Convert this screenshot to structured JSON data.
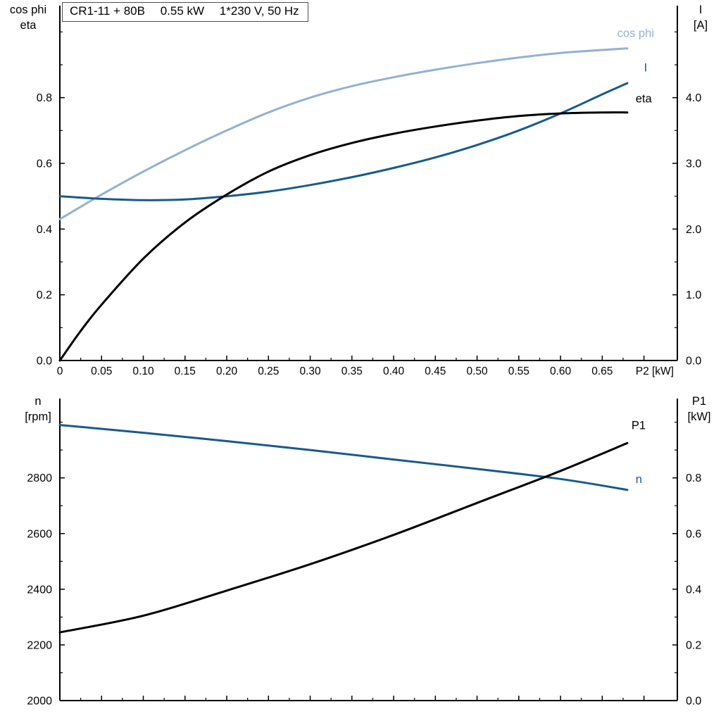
{
  "header": {
    "model": "CR1-11 + 80B",
    "power": "0.55 kW",
    "supply": "1*230 V, 50 Hz"
  },
  "colors": {
    "axis": "#000000",
    "background": "#ffffff",
    "curve_light_blue": "#92b2d0",
    "curve_dark_blue": "#175a8c",
    "curve_black": "#000000"
  },
  "chart_data": [
    {
      "type": "line",
      "title": "CR1-11 + 80B  0.55 kW  1*230 V, 50 Hz",
      "xlabel": "P2 [kW]",
      "xlim": [
        0,
        0.74
      ],
      "x_tick_values": [
        0,
        0.05,
        0.1,
        0.15,
        0.2,
        0.25,
        0.3,
        0.35,
        0.4,
        0.45,
        0.5,
        0.55,
        0.6,
        0.65,
        0.7
      ],
      "x_tick_labels": [
        "0",
        "0.05",
        "0.10",
        "0.15",
        "0.20",
        "0.25",
        "0.30",
        "0.35",
        "0.40",
        "0.45",
        "0.50",
        "0.55",
        "0.60",
        "0.65",
        ""
      ],
      "x_end_label": "P2 [kW]",
      "x_end_label_at": 0.69,
      "y_left": {
        "name_lines": [
          "cos phi",
          "eta"
        ],
        "lim": [
          0,
          1.08
        ],
        "tick_values": [
          0.0,
          0.2,
          0.4,
          0.6,
          0.8
        ],
        "tick_labels": [
          "0.0",
          "0.2",
          "0.4",
          "0.6",
          "0.8"
        ]
      },
      "y_right": {
        "name_lines": [
          "I",
          "[A]"
        ],
        "lim": [
          0,
          5.4
        ],
        "tick_values": [
          0.0,
          1.0,
          2.0,
          3.0,
          4.0
        ],
        "tick_labels": [
          "0.0",
          "1.0",
          "2.0",
          "3.0",
          "4.0"
        ]
      },
      "grid": false,
      "legend_position": "labels-at-curve-ends",
      "series": [
        {
          "id": "cos-phi",
          "label": "cos phi",
          "axis": "left",
          "color": "#92b2d0",
          "label_at": [
            0.668,
            0.985
          ],
          "x": [
            0,
            0.05,
            0.1,
            0.15,
            0.2,
            0.25,
            0.3,
            0.35,
            0.4,
            0.45,
            0.5,
            0.55,
            0.6,
            0.65,
            0.68
          ],
          "y": [
            0.43,
            0.505,
            0.575,
            0.64,
            0.7,
            0.755,
            0.8,
            0.835,
            0.862,
            0.885,
            0.905,
            0.922,
            0.936,
            0.945,
            0.95
          ]
        },
        {
          "id": "current",
          "label": "I",
          "axis": "right",
          "color": "#175a8c",
          "label_at": [
            0.7,
            4.4
          ],
          "x": [
            0,
            0.05,
            0.1,
            0.15,
            0.2,
            0.25,
            0.3,
            0.35,
            0.4,
            0.45,
            0.5,
            0.55,
            0.6,
            0.65,
            0.68
          ],
          "y": [
            2.5,
            2.46,
            2.44,
            2.45,
            2.5,
            2.57,
            2.67,
            2.79,
            2.93,
            3.09,
            3.28,
            3.5,
            3.76,
            4.05,
            4.22
          ]
        },
        {
          "id": "eta",
          "label": "eta",
          "axis": "left",
          "color": "#000000",
          "label_at": [
            0.69,
            0.785
          ],
          "x": [
            0,
            0.025,
            0.05,
            0.1,
            0.15,
            0.2,
            0.25,
            0.3,
            0.35,
            0.4,
            0.45,
            0.5,
            0.55,
            0.6,
            0.65,
            0.68
          ],
          "y": [
            0.0,
            0.09,
            0.17,
            0.31,
            0.42,
            0.505,
            0.575,
            0.625,
            0.662,
            0.69,
            0.712,
            0.73,
            0.744,
            0.752,
            0.755,
            0.755
          ]
        }
      ]
    },
    {
      "type": "line",
      "title": "",
      "xlabel": "",
      "xlim": [
        0,
        0.74
      ],
      "x_tick_values": [
        0,
        0.05,
        0.1,
        0.15,
        0.2,
        0.25,
        0.3,
        0.35,
        0.4,
        0.45,
        0.5,
        0.55,
        0.6,
        0.65,
        0.7
      ],
      "x_tick_labels": [
        "",
        "",
        "",
        "",
        "",
        "",
        "",
        "",
        "",
        "",
        "",
        "",
        "",
        "",
        ""
      ],
      "x_end_label": "",
      "x_end_label_at": 0.69,
      "y_left": {
        "name_lines": [
          "n",
          "[rpm]"
        ],
        "lim": [
          2000,
          3085
        ],
        "tick_values": [
          2000,
          2200,
          2400,
          2600,
          2800
        ],
        "tick_labels": [
          "2000",
          "2200",
          "2400",
          "2600",
          "2800"
        ]
      },
      "y_right": {
        "name_lines": [
          "P1",
          "[kW]"
        ],
        "lim": [
          0,
          1.085
        ],
        "tick_values": [
          0.0,
          0.2,
          0.4,
          0.6,
          0.8
        ],
        "tick_labels": [
          "0.0",
          "0.2",
          "0.4",
          "0.6",
          "0.8"
        ]
      },
      "grid": false,
      "legend_position": "labels-at-curve-ends",
      "series": [
        {
          "id": "speed",
          "label": "n",
          "axis": "left",
          "color": "#175a8c",
          "label_at": [
            0.69,
            2782
          ],
          "x": [
            0,
            0.1,
            0.2,
            0.3,
            0.4,
            0.5,
            0.6,
            0.68
          ],
          "y": [
            2990,
            2962,
            2932,
            2900,
            2866,
            2832,
            2796,
            2757
          ]
        },
        {
          "id": "p1",
          "label": "P1",
          "axis": "right",
          "color": "#000000",
          "label_at": [
            0.685,
            0.975
          ],
          "x": [
            0,
            0.1,
            0.2,
            0.3,
            0.4,
            0.5,
            0.6,
            0.68
          ],
          "y": [
            0.245,
            0.305,
            0.395,
            0.49,
            0.595,
            0.71,
            0.825,
            0.925
          ]
        }
      ]
    }
  ]
}
